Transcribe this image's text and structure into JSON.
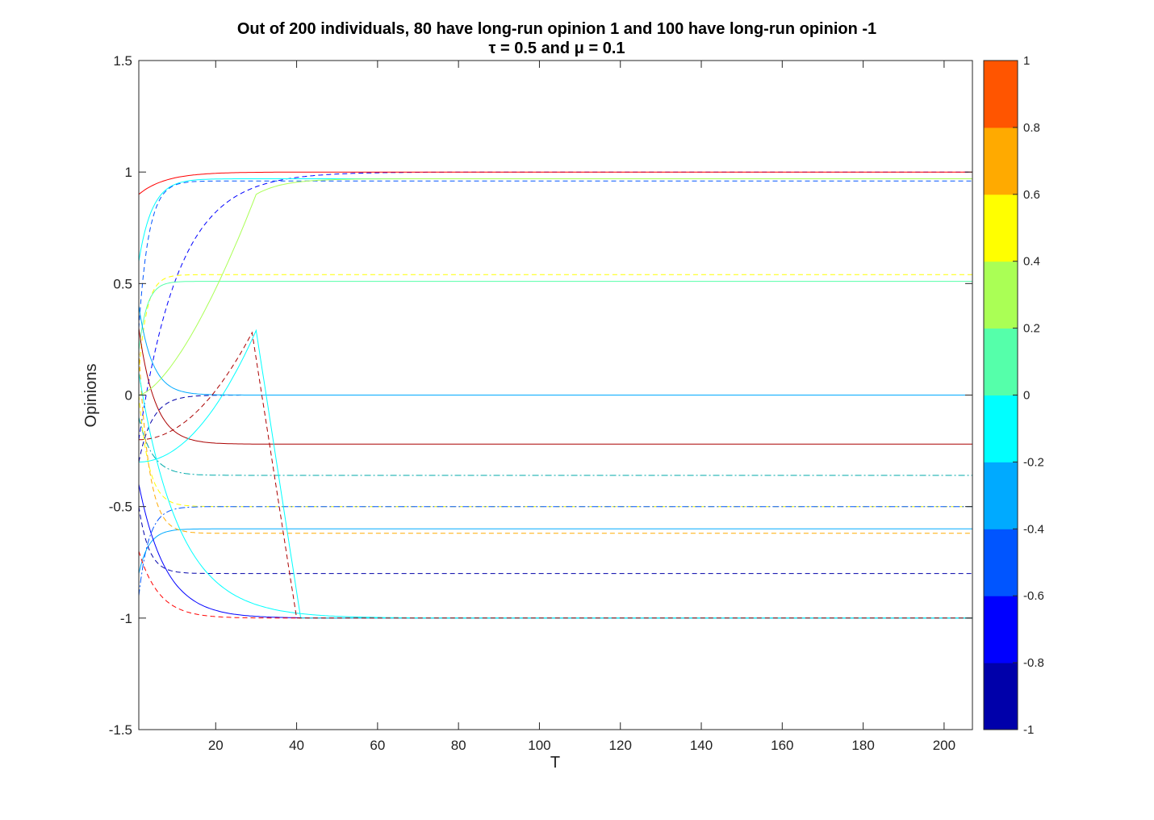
{
  "chart_data": {
    "type": "line",
    "title": "Out of 200 individuals, 80 have long-run opinion 1 and 100 have long-run opinion -1",
    "subtitle": "τ = 0.5 and μ = 0.1",
    "xlabel": "T",
    "ylabel": "Opinions",
    "xlim": [
      1,
      207
    ],
    "ylim": [
      -1.5,
      1.5
    ],
    "xticks": [
      20,
      40,
      60,
      80,
      100,
      120,
      140,
      160,
      180,
      200
    ],
    "yticks": [
      -1.5,
      -1,
      -0.5,
      0,
      0.5,
      1,
      1.5
    ],
    "ytick_labels": [
      "-1.5",
      "-1",
      "-0.5",
      "0",
      "0.5",
      "1",
      "1.5"
    ],
    "grid": false,
    "colorbar": {
      "colormap": "jet (10 levels)",
      "range": [
        -1,
        1
      ],
      "ticks": [
        -1,
        -0.8,
        -0.6,
        -0.4,
        -0.2,
        0,
        0.2,
        0.4,
        0.6,
        0.8,
        1
      ],
      "tick_labels": [
        "-1",
        "-0.8",
        "-0.6",
        "-0.4",
        "-0.2",
        "0",
        "0.2",
        "0.4",
        "0.6",
        "0.8",
        "1"
      ],
      "colors": [
        "#0000AA",
        "#0000FF",
        "#0055FF",
        "#00AAFF",
        "#00FFFF",
        "#55FFAA",
        "#AAFF55",
        "#FFFF00",
        "#FFAA00",
        "#FF5500"
      ]
    },
    "long_run_levels": [
      1.0,
      0.97,
      0.96,
      0.54,
      0.51,
      0.0,
      -0.22,
      -0.36,
      -0.5,
      -0.6,
      -0.62,
      -0.8,
      -1.0
    ],
    "counts": {
      "individuals": 200,
      "opinion_plus_1": 80,
      "opinion_minus_1": 100
    },
    "parameters": {
      "tau": 0.5,
      "mu": 0.1
    },
    "series": [
      {
        "color": "#0000FF",
        "dash": "dashed",
        "start": -0.2,
        "end": 1.0,
        "rate": 0.1
      },
      {
        "color": "#FF0000",
        "dash": "solid",
        "start": 0.9,
        "end": 1.0,
        "rate": 0.15
      },
      {
        "color": "#00FFFF",
        "dash": "solid",
        "start": 0.6,
        "end": 0.97,
        "rate": 0.3
      },
      {
        "color": "#0055FF",
        "dash": "dashed",
        "start": 0.3,
        "end": 0.96,
        "rate": 0.4
      },
      {
        "color": "#FFFF00",
        "dash": "dashed",
        "start": 0.1,
        "end": 0.54,
        "rate": 0.5
      },
      {
        "color": "#55FFAA",
        "dash": "solid",
        "start": 0.2,
        "end": 0.51,
        "rate": 0.5
      },
      {
        "color": "#0000AA",
        "dash": "dashed",
        "start": -0.3,
        "end": 0.0,
        "rate": 0.3
      },
      {
        "color": "#00AAFF",
        "dash": "solid",
        "start": 0.4,
        "end": 0.0,
        "rate": 0.3
      },
      {
        "color": "#AA0000",
        "dash": "solid",
        "start": 0.3,
        "end": -0.22,
        "rate": 0.25
      },
      {
        "color": "#00AAAA",
        "dash": "dashdot",
        "start": -0.1,
        "end": -0.36,
        "rate": 0.3
      },
      {
        "color": "#FFFF00",
        "dash": "dashed",
        "start": 0.0,
        "end": -0.5,
        "rate": 0.4
      },
      {
        "color": "#0055FF",
        "dash": "dashdot",
        "start": -0.9,
        "end": -0.5,
        "rate": 0.4
      },
      {
        "color": "#00AAFF",
        "dash": "solid",
        "start": -0.8,
        "end": -0.6,
        "rate": 0.4
      },
      {
        "color": "#FFAA00",
        "dash": "dashed",
        "start": 0.2,
        "end": -0.62,
        "rate": 0.4
      },
      {
        "color": "#0000AA",
        "dash": "dashed",
        "start": -0.5,
        "end": -0.8,
        "rate": 0.4
      },
      {
        "color": "#0000FF",
        "dash": "solid",
        "start": -0.4,
        "end": -1.0,
        "rate": 0.15
      },
      {
        "color": "#FF0000",
        "dash": "dashed",
        "start": -0.7,
        "end": -1.0,
        "rate": 0.2
      },
      {
        "color": "#00FFFF",
        "dash": "solid",
        "start": 0.1,
        "end": -1.0,
        "rate": 0.1
      },
      {
        "color": "#AAFF55",
        "dash": "solid",
        "start": 0.0,
        "end": 0.97,
        "bend_at": 30,
        "bend_value": 0.9
      },
      {
        "color": "#00FFFF",
        "dash": "solid",
        "start": -0.3,
        "end": -1.0,
        "bend_at": 30,
        "bend_value": 0.29,
        "drop_end": 41
      },
      {
        "color": "#AA0000",
        "dash": "dashed",
        "start": -0.2,
        "end": -1.0,
        "bend_at": 29,
        "bend_value": 0.28,
        "drop_end": 40
      }
    ]
  }
}
